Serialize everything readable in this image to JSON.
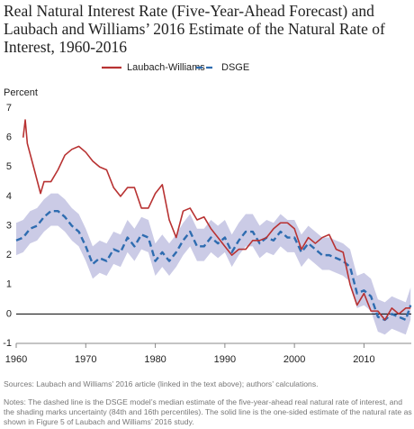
{
  "chart_data": {
    "type": "line",
    "title": "Real Natural Interest Rate (Five-Year-Ahead Forecast) and Laubach and Williams’ 2016 Estimate of the Natural Rate of Interest, 1960-2016",
    "y_label": "Percent",
    "legend": "top",
    "zero_line": true,
    "xlim": [
      1960,
      2016.8
    ],
    "xticks": [
      1960,
      1970,
      1980,
      1990,
      2000,
      2010
    ],
    "ylim": [
      -1,
      7
    ],
    "yticks": [
      -1,
      0,
      1,
      2,
      3,
      4,
      5,
      6,
      7
    ],
    "series": [
      {
        "name": "Laubach-Williams",
        "color": "#b83232",
        "dashed": false,
        "x": [
          1961,
          1961.3,
          1961.6,
          1962.5,
          1963.5,
          1964,
          1965,
          1966,
          1967,
          1968,
          1969,
          1970,
          1971,
          1972,
          1973,
          1974,
          1975,
          1976,
          1977,
          1978,
          1979,
          1980,
          1981,
          1982,
          1983,
          1984,
          1985,
          1986,
          1987,
          1988,
          1989,
          1990,
          1991,
          1992,
          1993,
          1994,
          1995,
          1996,
          1997,
          1998,
          1999,
          2000,
          2001,
          2002,
          2003,
          2004,
          2005,
          2006,
          2007,
          2008,
          2009,
          2010,
          2011,
          2012,
          2013,
          2014,
          2015,
          2016,
          2016.7
        ],
        "values": [
          6.0,
          6.6,
          5.8,
          5.0,
          4.1,
          4.5,
          4.5,
          4.9,
          5.4,
          5.6,
          5.7,
          5.5,
          5.2,
          5.0,
          4.9,
          4.3,
          4.0,
          4.3,
          4.3,
          3.6,
          3.6,
          4.1,
          4.4,
          3.2,
          2.6,
          3.5,
          3.6,
          3.2,
          3.3,
          2.9,
          2.6,
          2.3,
          2.0,
          2.2,
          2.2,
          2.5,
          2.5,
          2.6,
          2.9,
          3.1,
          3.1,
          2.9,
          2.2,
          2.6,
          2.4,
          2.6,
          2.7,
          2.2,
          2.1,
          1.0,
          0.3,
          0.7,
          0.1,
          0.1,
          -0.2,
          0.2,
          0.0,
          0.2,
          0.2
        ]
      },
      {
        "name": "DSGE",
        "color": "#2e6cb0",
        "dashed": true,
        "x": [
          1960,
          1961,
          1962,
          1963,
          1964,
          1965,
          1966,
          1967,
          1968,
          1969,
          1970,
          1971,
          1972,
          1973,
          1974,
          1975,
          1976,
          1977,
          1978,
          1979,
          1980,
          1981,
          1982,
          1983,
          1984,
          1985,
          1986,
          1987,
          1988,
          1989,
          1990,
          1991,
          1992,
          1993,
          1994,
          1995,
          1996,
          1997,
          1998,
          1999,
          2000,
          2001,
          2002,
          2003,
          2004,
          2005,
          2006,
          2007,
          2008,
          2009,
          2010,
          2011,
          2012,
          2013,
          2014,
          2015,
          2016,
          2016.7
        ],
        "values": [
          2.5,
          2.6,
          2.9,
          3.0,
          3.3,
          3.5,
          3.5,
          3.3,
          3.0,
          2.8,
          2.3,
          1.7,
          1.9,
          1.8,
          2.2,
          2.1,
          2.6,
          2.3,
          2.7,
          2.6,
          1.8,
          2.1,
          1.8,
          2.1,
          2.5,
          2.8,
          2.3,
          2.3,
          2.6,
          2.4,
          2.6,
          2.1,
          2.5,
          2.8,
          2.8,
          2.4,
          2.6,
          2.5,
          2.8,
          2.6,
          2.6,
          2.1,
          2.4,
          2.2,
          2.0,
          2.0,
          1.9,
          1.8,
          1.6,
          0.7,
          0.8,
          0.6,
          -0.1,
          -0.2,
          0.0,
          -0.1,
          -0.2,
          0.3
        ]
      }
    ],
    "band": {
      "color": "#cbcbe6",
      "upper": [
        3.1,
        3.2,
        3.5,
        3.6,
        3.9,
        4.1,
        4.1,
        3.9,
        3.6,
        3.4,
        2.9,
        2.3,
        2.5,
        2.4,
        2.8,
        2.7,
        3.2,
        2.9,
        3.3,
        3.2,
        2.4,
        2.7,
        2.4,
        2.7,
        3.1,
        3.4,
        2.9,
        2.9,
        3.2,
        3.0,
        3.2,
        2.7,
        3.1,
        3.4,
        3.4,
        3.0,
        3.2,
        3.1,
        3.4,
        3.2,
        3.2,
        2.7,
        3.0,
        2.8,
        2.6,
        2.6,
        2.5,
        2.4,
        2.2,
        1.3,
        1.4,
        1.2,
        0.5,
        0.4,
        0.6,
        0.5,
        0.4,
        0.9
      ],
      "lower": [
        2.0,
        2.1,
        2.4,
        2.5,
        2.8,
        3.0,
        3.0,
        2.8,
        2.5,
        2.3,
        1.8,
        1.2,
        1.4,
        1.3,
        1.7,
        1.6,
        2.1,
        1.8,
        2.2,
        2.1,
        1.3,
        1.6,
        1.3,
        1.6,
        2.0,
        2.3,
        1.8,
        1.8,
        2.1,
        1.9,
        2.1,
        1.6,
        2.0,
        2.3,
        2.3,
        1.9,
        2.1,
        2.0,
        2.3,
        2.1,
        2.1,
        1.6,
        1.9,
        1.7,
        1.5,
        1.5,
        1.4,
        1.3,
        1.1,
        0.2,
        0.3,
        0.1,
        -0.6,
        -0.7,
        -0.5,
        -0.6,
        -0.7,
        -0.2
      ]
    },
    "sources": "Sources: Laubach and Williams’ 2016 article (linked in the text above); authors’ calculations.",
    "notes": "Notes: The dashed line is the DSGE model’s median estimate of the five-year-ahead real natural rate of interest, and the shading marks uncertainty (84th and 16th percentiles). The solid line is the one-sided estimate of the natural rate as shown in Figure 5 of Laubach and Williams’ 2016 study."
  }
}
